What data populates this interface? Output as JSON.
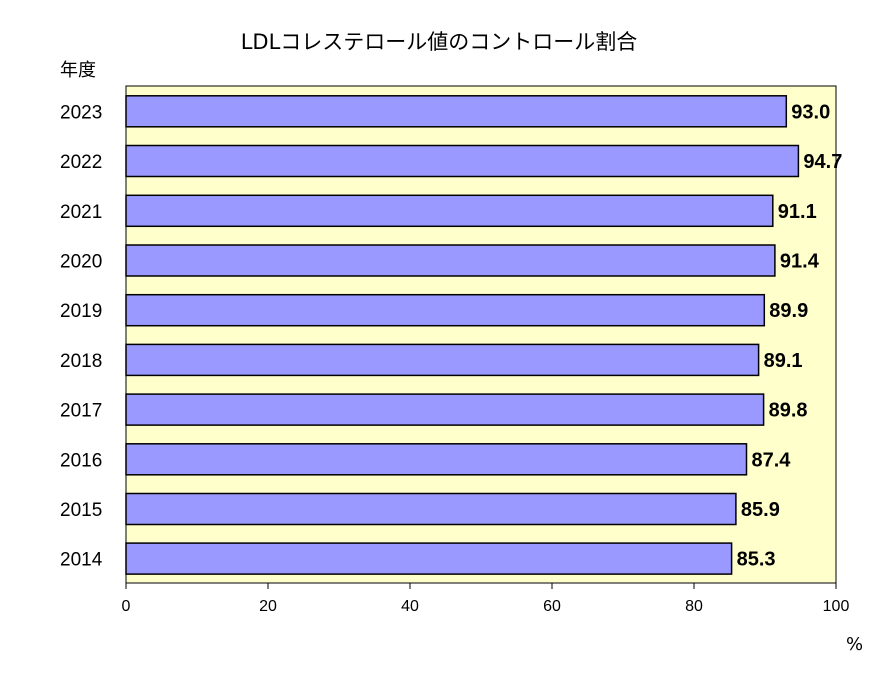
{
  "chart_data": {
    "type": "bar",
    "orientation": "horizontal",
    "title": "LDLコレステロール値のコントロール割合",
    "ylabel": "年度",
    "unit": "%",
    "categories": [
      "2023",
      "2022",
      "2021",
      "2020",
      "2019",
      "2018",
      "2017",
      "2016",
      "2015",
      "2014"
    ],
    "values": [
      93.0,
      94.7,
      91.1,
      91.4,
      89.9,
      89.1,
      89.8,
      87.4,
      85.9,
      85.3
    ],
    "value_labels": [
      "93.0",
      "94.7",
      "91.1",
      "91.4",
      "89.9",
      "89.1",
      "89.8",
      "87.4",
      "85.9",
      "85.3"
    ],
    "xlim": [
      0,
      100
    ],
    "xticks": [
      "0",
      "20",
      "40",
      "60",
      "80",
      "100"
    ],
    "bar_color": "#9999ff",
    "plot_background": "#ffffcc",
    "grid": false
  }
}
